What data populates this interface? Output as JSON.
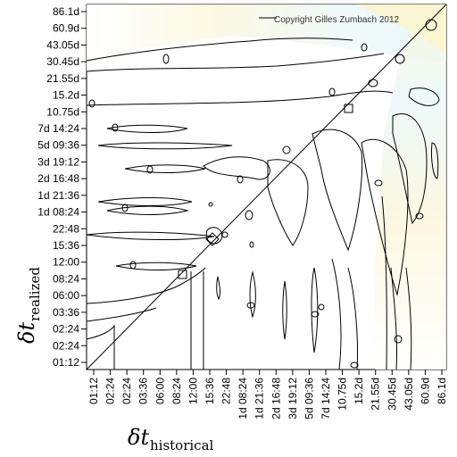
{
  "chart_data": {
    "type": "heatmap",
    "title": "",
    "copyright": "Copyright Gilles Zumbach 2012",
    "xlabel": {
      "symbol": "δt",
      "subscript": "historical"
    },
    "ylabel": {
      "symbol": "δt",
      "subscript": "realized"
    },
    "x_ticks": [
      "01:12",
      "02:24",
      "02:24",
      "03:36",
      "06:00",
      "08:24",
      "12:00",
      "15:36",
      "22:48",
      "1d 08:24",
      "1d 21:36",
      "2d 16:48",
      "3d 19:12",
      "5d 09:36",
      "7d 14:24",
      "10.75d",
      "15.2d",
      "21.55d",
      "30.45d",
      "43.05d",
      "60.9d",
      "86.1d"
    ],
    "y_ticks": [
      "01:12",
      "02:24",
      "02:24",
      "03:36",
      "06:00",
      "08:24",
      "12:00",
      "15:36",
      "22:48",
      "1d 08:24",
      "1d 21:36",
      "2d 16:48",
      "3d 19:12",
      "5d 09:36",
      "7d 14:24",
      "10.75d",
      "15.2d",
      "21.55d",
      "30.45d",
      "43.05d",
      "60.9d",
      "86.1d"
    ],
    "diagonal": true,
    "grid": false,
    "colors": {
      "background": "#ffffff",
      "low": "#ffffff",
      "mid": "#e9f8fb",
      "high": "#fbf6d5",
      "line": "#000000"
    }
  }
}
